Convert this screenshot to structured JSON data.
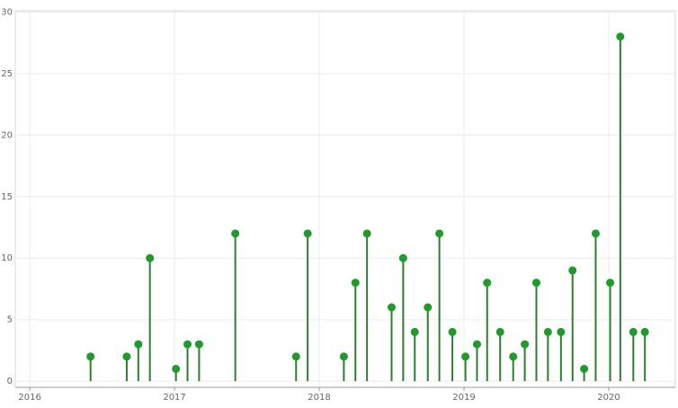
{
  "chart_data": {
    "type": "lollipop",
    "x": [
      2016.42,
      2016.67,
      2016.75,
      2016.83,
      2017.01,
      2017.09,
      2017.17,
      2017.42,
      2017.84,
      2017.92,
      2018.17,
      2018.25,
      2018.33,
      2018.5,
      2018.58,
      2018.66,
      2018.75,
      2018.83,
      2018.92,
      2019.01,
      2019.09,
      2019.16,
      2019.25,
      2019.34,
      2019.42,
      2019.5,
      2019.58,
      2019.67,
      2019.75,
      2019.83,
      2019.91,
      2020.01,
      2020.08,
      2020.17,
      2020.25
    ],
    "values": [
      2,
      2,
      3,
      10,
      1,
      3,
      3,
      12,
      2,
      12,
      2,
      8,
      12,
      6,
      10,
      4,
      6,
      12,
      4,
      2,
      3,
      8,
      4,
      2,
      3,
      8,
      4,
      4,
      9,
      1,
      12,
      8,
      28,
      4,
      4
    ],
    "color": "#1f9a2b",
    "stem_color": "#2e7d32",
    "xlim": [
      2015.9,
      2020.46
    ],
    "xticks": [
      2016,
      2017,
      2018,
      2019,
      2020
    ],
    "ylim": [
      -0.5,
      30.1
    ],
    "yticks": [
      0,
      5,
      10,
      15,
      20,
      25,
      30
    ],
    "grid": true
  }
}
